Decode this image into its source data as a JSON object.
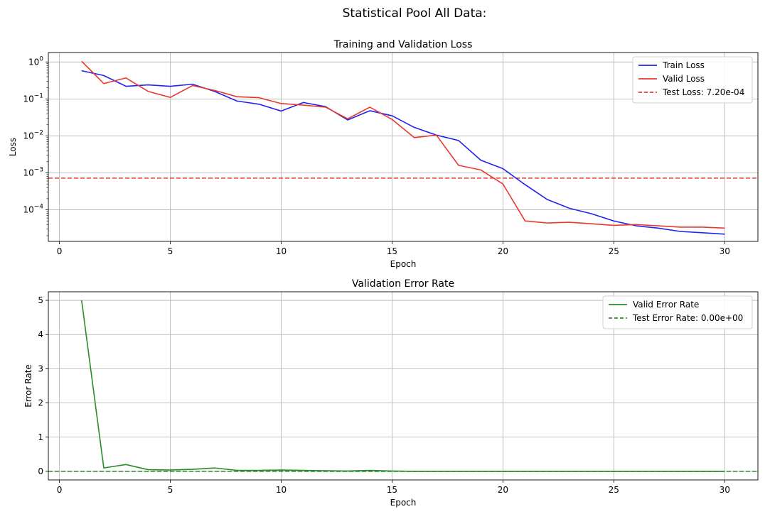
{
  "figure": {
    "title": "Statistical Pool All Data:"
  },
  "chart_data": [
    {
      "type": "line",
      "title": "Training and Validation Loss",
      "xlabel": "Epoch",
      "ylabel": "Loss",
      "yscale": "log",
      "xlim": [
        -0.5,
        31.5
      ],
      "ylim": [
        1.4e-05,
        1.8
      ],
      "grid": true,
      "legend_position": "top-right",
      "x": [
        1,
        2,
        3,
        4,
        5,
        6,
        7,
        8,
        9,
        10,
        11,
        12,
        13,
        14,
        15,
        16,
        17,
        18,
        19,
        20,
        21,
        22,
        23,
        24,
        25,
        26,
        27,
        28,
        29,
        30
      ],
      "x_ticks": [
        0,
        5,
        10,
        15,
        20,
        25,
        30
      ],
      "y_ticks": [
        {
          "value": 1,
          "base": "10",
          "exp": "0"
        },
        {
          "value": 0.1,
          "base": "10",
          "exp": "−1"
        },
        {
          "value": 0.01,
          "base": "10",
          "exp": "−2"
        },
        {
          "value": 0.001,
          "base": "10",
          "exp": "−3"
        },
        {
          "value": 0.0001,
          "base": "10",
          "exp": "−4"
        }
      ],
      "series": [
        {
          "name": "Train Loss",
          "color": "#2222ee",
          "style": "solid",
          "values": [
            0.58,
            0.43,
            0.22,
            0.24,
            0.22,
            0.25,
            0.16,
            0.088,
            0.072,
            0.047,
            0.08,
            0.062,
            0.027,
            0.048,
            0.035,
            0.017,
            0.0105,
            0.0075,
            0.0022,
            0.0013,
            0.00048,
            0.00019,
            0.00011,
            7.8e-05,
            5e-05,
            3.7e-05,
            3.2e-05,
            2.6e-05,
            2.4e-05,
            2.2e-05
          ]
        },
        {
          "name": "Valid Loss",
          "color": "#e8392e",
          "style": "solid",
          "values": [
            1.05,
            0.26,
            0.37,
            0.16,
            0.11,
            0.23,
            0.17,
            0.115,
            0.108,
            0.075,
            0.068,
            0.06,
            0.029,
            0.06,
            0.028,
            0.009,
            0.0105,
            0.0016,
            0.0012,
            0.0005,
            5e-05,
            4.4e-05,
            4.6e-05,
            4.2e-05,
            3.8e-05,
            4e-05,
            3.7e-05,
            3.4e-05,
            3.4e-05,
            3.2e-05
          ]
        }
      ],
      "hlines": [
        {
          "name": "Test Loss: 7.20e-04",
          "value": 0.00072,
          "color": "#e8392e",
          "style": "dashed"
        }
      ]
    },
    {
      "type": "line",
      "title": "Validation Error Rate",
      "xlabel": "Epoch",
      "ylabel": "Error Rate",
      "xlim": [
        -0.5,
        31.5
      ],
      "ylim": [
        -0.25,
        5.25
      ],
      "grid": true,
      "legend_position": "top-right",
      "x": [
        1,
        2,
        3,
        4,
        5,
        6,
        7,
        8,
        9,
        10,
        11,
        12,
        13,
        14,
        15,
        16,
        17,
        18,
        19,
        20,
        21,
        22,
        23,
        24,
        25,
        26,
        27,
        28,
        29,
        30
      ],
      "x_ticks": [
        0,
        5,
        10,
        15,
        20,
        25,
        30
      ],
      "y_ticks": [
        0,
        1,
        2,
        3,
        4,
        5
      ],
      "series": [
        {
          "name": "Valid Error Rate",
          "color": "#2a8a2a",
          "style": "solid",
          "values": [
            5.0,
            0.1,
            0.2,
            0.05,
            0.04,
            0.06,
            0.1,
            0.03,
            0.03,
            0.04,
            0.03,
            0.02,
            0.01,
            0.03,
            0.01,
            0.0,
            0.0,
            0.0,
            0.0,
            0.0,
            0.0,
            0.0,
            0.0,
            0.0,
            0.0,
            0.0,
            0.0,
            0.0,
            0.0,
            0.0
          ]
        }
      ],
      "hlines": [
        {
          "name": "Test Error Rate: 0.00e+00",
          "value": 0.0,
          "color": "#2a8a2a",
          "style": "dashed"
        }
      ]
    }
  ]
}
